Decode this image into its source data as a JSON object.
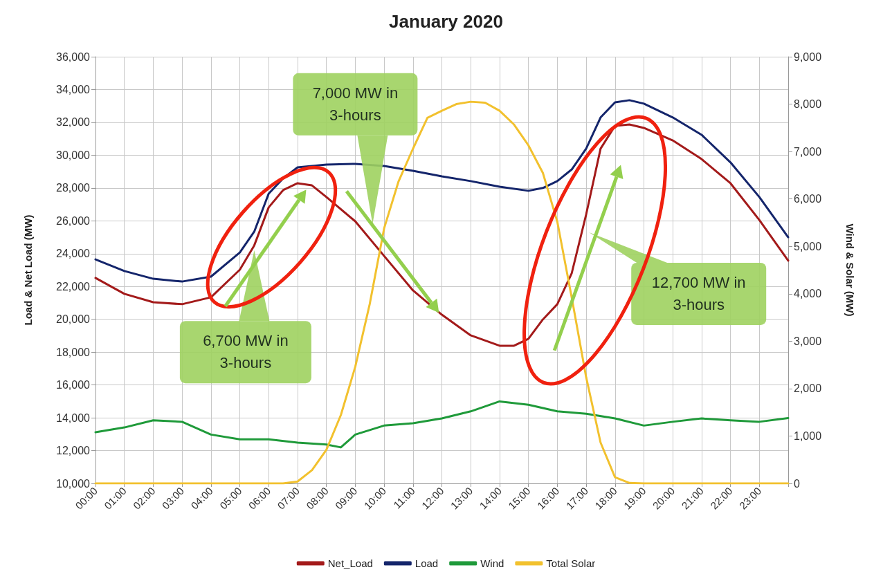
{
  "chart_data": {
    "type": "line",
    "title": "January 2020",
    "ylabel": "Load & Net Load (MW)",
    "y2label": "Wind & Solar (MW)",
    "xlim": [
      0,
      24
    ],
    "xticks": [
      {
        "value": 0,
        "label": "00:00"
      },
      {
        "value": 1,
        "label": "01:00"
      },
      {
        "value": 2,
        "label": "02:00"
      },
      {
        "value": 3,
        "label": "03:00"
      },
      {
        "value": 4,
        "label": "04:00"
      },
      {
        "value": 5,
        "label": "05:00"
      },
      {
        "value": 6,
        "label": "06:00"
      },
      {
        "value": 7,
        "label": "07:00"
      },
      {
        "value": 8,
        "label": "08:00"
      },
      {
        "value": 9,
        "label": "09:00"
      },
      {
        "value": 10,
        "label": "10:00"
      },
      {
        "value": 11,
        "label": "11:00"
      },
      {
        "value": 12,
        "label": "12:00"
      },
      {
        "value": 13,
        "label": "13:00"
      },
      {
        "value": 14,
        "label": "14:00"
      },
      {
        "value": 15,
        "label": "15:00"
      },
      {
        "value": 16,
        "label": "16:00"
      },
      {
        "value": 17,
        "label": "17:00"
      },
      {
        "value": 18,
        "label": "18:00"
      },
      {
        "value": 19,
        "label": "19:00"
      },
      {
        "value": 20,
        "label": "20:00"
      },
      {
        "value": 21,
        "label": "21:00"
      },
      {
        "value": 22,
        "label": "22:00"
      },
      {
        "value": 23,
        "label": "23:00"
      },
      {
        "value": 24,
        "label": null
      }
    ],
    "ylim": [
      10000,
      36000
    ],
    "yticks": [
      {
        "value": 10000,
        "label": "10,000"
      },
      {
        "value": 12000,
        "label": "12,000"
      },
      {
        "value": 14000,
        "label": "14,000"
      },
      {
        "value": 16000,
        "label": "16,000"
      },
      {
        "value": 18000,
        "label": "18,000"
      },
      {
        "value": 20000,
        "label": "20,000"
      },
      {
        "value": 22000,
        "label": "22,000"
      },
      {
        "value": 24000,
        "label": "24,000"
      },
      {
        "value": 26000,
        "label": "26,000"
      },
      {
        "value": 28000,
        "label": "28,000"
      },
      {
        "value": 30000,
        "label": "30,000"
      },
      {
        "value": 32000,
        "label": "32,000"
      },
      {
        "value": 34000,
        "label": "34,000"
      },
      {
        "value": 36000,
        "label": "36,000"
      }
    ],
    "y2lim": [
      0,
      9000
    ],
    "y2ticks": [
      0,
      {
        "value": 1000,
        "label": "1,000"
      },
      {
        "value": 2000,
        "label": "2,000"
      },
      {
        "value": 3000,
        "label": "3,000"
      },
      {
        "value": 4000,
        "label": "4,000"
      },
      {
        "value": 5000,
        "label": "5,000"
      },
      {
        "value": 6000,
        "label": "6,000"
      },
      {
        "value": 7000,
        "label": "7,000"
      },
      {
        "value": 8000,
        "label": "8,000"
      },
      {
        "value": 9000,
        "label": "9,000"
      }
    ],
    "grid": true,
    "legend": "bottom",
    "marker": "none",
    "line_style": "solid",
    "series": [
      {
        "name": "Net_Load",
        "color": "#a31a1a",
        "x": [
          0,
          1,
          2,
          3,
          4,
          5,
          5.5,
          6,
          6.5,
          7,
          7.5,
          8,
          9,
          10,
          11,
          12,
          13,
          14,
          14.5,
          15,
          15.5,
          16,
          16.5,
          17,
          17.5,
          18,
          18.5,
          19,
          20,
          21,
          22,
          23,
          24
        ],
        "values": [
          22520,
          21550,
          21040,
          20920,
          21340,
          23020,
          24500,
          26820,
          27870,
          28290,
          28160,
          27450,
          25970,
          23860,
          21760,
          20280,
          19020,
          18390,
          18390,
          18810,
          19990,
          20920,
          22810,
          26390,
          30400,
          31790,
          31870,
          31660,
          30900,
          29760,
          28290,
          26050,
          23570
        ]
      },
      {
        "name": "Load",
        "color": "#14256b",
        "x": [
          0,
          1,
          2,
          3,
          4,
          5,
          5.5,
          6,
          6.5,
          7,
          8,
          9,
          10,
          11,
          12,
          13,
          14,
          15,
          15.5,
          16,
          16.5,
          17,
          17.5,
          18,
          18.5,
          19,
          20,
          21,
          22,
          23,
          24
        ],
        "values": [
          23650,
          22940,
          22470,
          22300,
          22600,
          24070,
          25340,
          27660,
          28580,
          29260,
          29430,
          29470,
          29340,
          29050,
          28710,
          28420,
          28080,
          27830,
          28000,
          28420,
          29130,
          30400,
          32300,
          33220,
          33350,
          33140,
          32300,
          31240,
          29560,
          27450,
          25000
        ]
      },
      {
        "name": "Wind",
        "color": "#1f9a3a",
        "axis": "y2",
        "x": [
          0,
          1,
          2,
          3,
          4,
          5,
          6,
          7,
          8,
          8.5,
          9,
          10,
          11,
          12,
          13,
          14,
          15,
          16,
          17,
          18,
          19,
          20,
          21,
          22,
          23,
          24
        ],
        "values": [
          1080,
          1180,
          1330,
          1300,
          1030,
          930,
          930,
          860,
          820,
          760,
          1030,
          1220,
          1270,
          1370,
          1520,
          1730,
          1660,
          1520,
          1470,
          1370,
          1220,
          1300,
          1370,
          1330,
          1300,
          1380
        ]
      },
      {
        "name": "Total Solar",
        "color": "#f2c12e",
        "axis": "y2",
        "x": [
          0,
          6.5,
          7,
          7.5,
          8,
          8.5,
          9,
          9.5,
          10,
          10.5,
          11,
          11.5,
          12,
          12.5,
          13,
          13.5,
          14,
          14.5,
          15,
          15.5,
          16,
          16.5,
          17,
          17.5,
          18,
          18.5,
          19,
          24
        ],
        "values": [
          0,
          0,
          40,
          280,
          710,
          1440,
          2460,
          3780,
          5380,
          6370,
          7060,
          7710,
          7860,
          8000,
          8050,
          8030,
          7860,
          7570,
          7130,
          6550,
          5520,
          3920,
          2240,
          860,
          130,
          10,
          0,
          0
        ]
      }
    ],
    "annotations": [
      "7,000 MW in\n3-hours",
      "6,700 MW in\n3-hours",
      "12,700 MW in\n3-hours"
    ]
  }
}
